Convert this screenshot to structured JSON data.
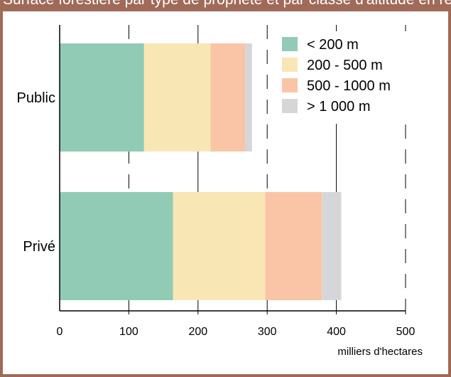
{
  "header": {
    "title": "Surface forestière par type de propriété et par classe d'altitude en région"
  },
  "colors": {
    "header_bg": "#a06a58",
    "lt200": "#92cbb5",
    "200_500": "#f8e7b4",
    "500_1000": "#f9c5a6",
    "gt1000": "#d6d6d8"
  },
  "chart_data": {
    "type": "bar",
    "orientation": "horizontal",
    "stacked": true,
    "title": "",
    "xlabel": "milliers d'hectares",
    "ylabel": "",
    "xlim": [
      0,
      500
    ],
    "xticks": [
      "0",
      "100",
      "200",
      "300",
      "400",
      "500"
    ],
    "categories": [
      "Public",
      "Privé"
    ],
    "series": [
      {
        "name": "< 200 m",
        "values": [
          122,
          164
        ]
      },
      {
        "name": "200 - 500 m",
        "values": [
          96,
          133
        ]
      },
      {
        "name": "500 - 1000 m",
        "values": [
          50,
          82
        ]
      },
      {
        "name": "> 1 000 m",
        "values": [
          10,
          28
        ]
      }
    ],
    "grid": "vertical, dashed",
    "legend": "top-right"
  }
}
